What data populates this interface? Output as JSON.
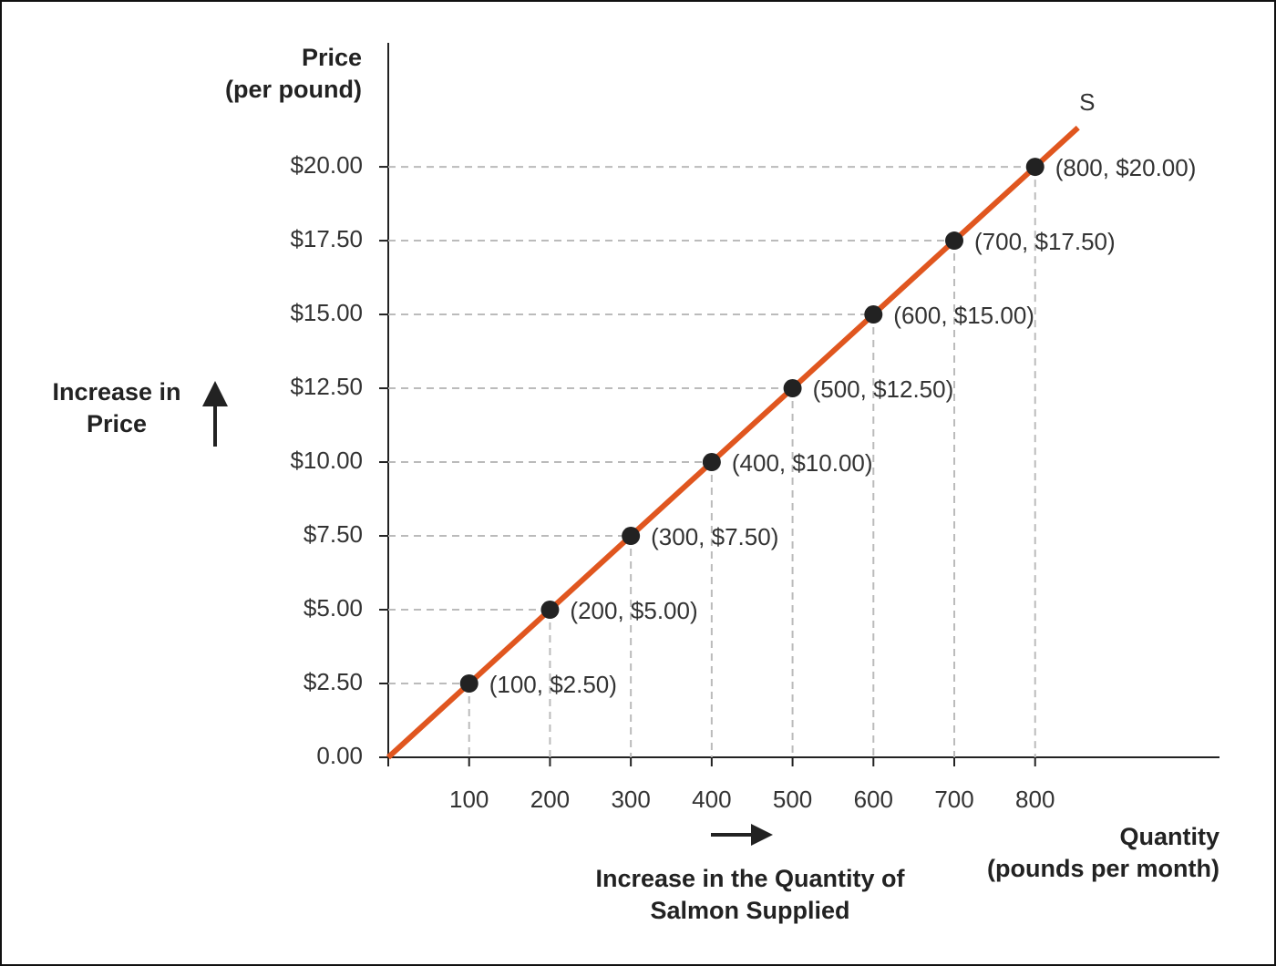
{
  "chart_data": {
    "type": "line",
    "y_label": [
      "Price",
      "(per pound)"
    ],
    "x_label": [
      "Quantity",
      "(pounds per month)"
    ],
    "price_note": [
      "Increase in",
      "Price"
    ],
    "quantity_note": [
      "Increase in the Quantity of",
      "Salmon Supplied"
    ],
    "xlim": [
      0,
      1028
    ],
    "ylim": [
      0,
      24.2
    ],
    "xticks": [
      100,
      200,
      300,
      400,
      500,
      600,
      700,
      800
    ],
    "yticks": [
      {
        "value": 0,
        "label": "0.00"
      },
      {
        "value": 2.5,
        "label": "$2.50"
      },
      {
        "value": 5,
        "label": "$5.00"
      },
      {
        "value": 7.5,
        "label": "$7.50"
      },
      {
        "value": 10,
        "label": "$10.00"
      },
      {
        "value": 12.5,
        "label": "$12.50"
      },
      {
        "value": 15,
        "label": "$15.00"
      },
      {
        "value": 17.5,
        "label": "$17.50"
      },
      {
        "value": 20,
        "label": "$20.00"
      }
    ],
    "line": {
      "name": "S",
      "color": "#e0561f",
      "x": [
        0,
        853
      ],
      "values": [
        0,
        21.325
      ]
    },
    "points": {
      "color": "#222222",
      "x": [
        100,
        200,
        300,
        400,
        500,
        600,
        700,
        800
      ],
      "values": [
        2.5,
        5,
        7.5,
        10,
        12.5,
        15,
        17.5,
        20
      ],
      "value_labels": [
        "(100, $2.50)",
        "(200, $5.00)",
        "(300, $7.50)",
        "(400, $10.00)",
        "(500, $12.50)",
        "(600, $15.00)",
        "(700, $17.50)",
        "(800, $20.00)"
      ]
    },
    "drop_line_color": "#bbbbbb"
  }
}
